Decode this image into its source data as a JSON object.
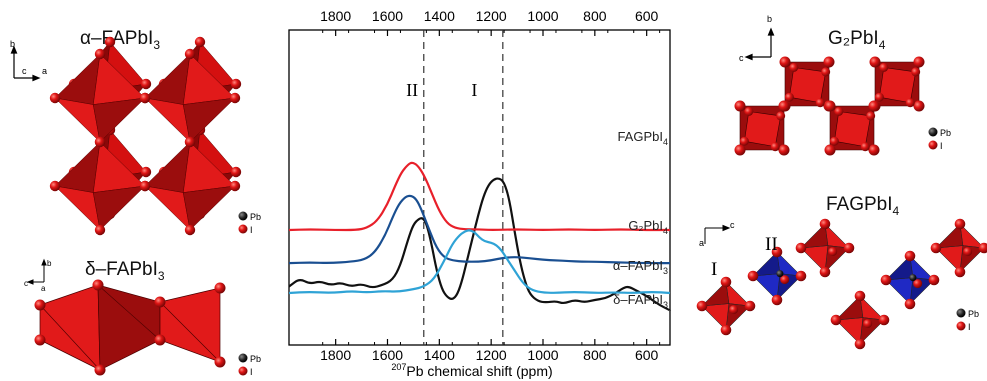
{
  "chart_data": {
    "type": "line",
    "xlabel_sup": "207",
    "xlabel_rest": "Pb chemical shift (ppm)",
    "x_reversed": true,
    "xlim": [
      1980,
      510
    ],
    "ticks": [
      1800,
      1600,
      1400,
      1200,
      1000,
      800,
      600
    ],
    "tick_labels": [
      "1800",
      "1600",
      "1400",
      "1200",
      "1000",
      "800",
      "600"
    ],
    "vlines": [
      1460,
      1155
    ],
    "peak_labels": [
      {
        "text": "II",
        "x": 1505
      },
      {
        "text": "I",
        "x": 1265
      }
    ],
    "series": [
      {
        "key": "fag",
        "name_main": "FAGPbI",
        "name_sub": "4",
        "color": "#111111",
        "baseline": 0.89,
        "amp": 0.8,
        "points": [
          [
            1980,
            0.18
          ],
          [
            1940,
            0.24
          ],
          [
            1900,
            0.2
          ],
          [
            1860,
            0.22
          ],
          [
            1820,
            0.19
          ],
          [
            1780,
            0.21
          ],
          [
            1740,
            0.18
          ],
          [
            1700,
            0.2
          ],
          [
            1660,
            0.17
          ],
          [
            1620,
            0.19
          ],
          [
            1580,
            0.23
          ],
          [
            1550,
            0.34
          ],
          [
            1520,
            0.54
          ],
          [
            1500,
            0.65
          ],
          [
            1480,
            0.69
          ],
          [
            1465,
            0.7
          ],
          [
            1450,
            0.66
          ],
          [
            1430,
            0.5
          ],
          [
            1410,
            0.3
          ],
          [
            1390,
            0.16
          ],
          [
            1370,
            0.1
          ],
          [
            1350,
            0.08
          ],
          [
            1330,
            0.12
          ],
          [
            1310,
            0.24
          ],
          [
            1290,
            0.4
          ],
          [
            1270,
            0.56
          ],
          [
            1250,
            0.72
          ],
          [
            1230,
            0.86
          ],
          [
            1210,
            0.95
          ],
          [
            1190,
            0.99
          ],
          [
            1170,
            1.0
          ],
          [
            1150,
            0.97
          ],
          [
            1130,
            0.84
          ],
          [
            1110,
            0.6
          ],
          [
            1090,
            0.38
          ],
          [
            1070,
            0.22
          ],
          [
            1050,
            0.12
          ],
          [
            1020,
            0.07
          ],
          [
            990,
            0.06
          ],
          [
            950,
            0.07
          ],
          [
            920,
            0.05
          ],
          [
            880,
            0.08
          ],
          [
            840,
            0.06
          ],
          [
            800,
            0.08
          ],
          [
            760,
            0.09
          ],
          [
            720,
            0.13
          ],
          [
            690,
            0.17
          ],
          [
            670,
            0.18
          ],
          [
            640,
            0.15
          ],
          [
            610,
            0.12
          ],
          [
            580,
            0.08
          ],
          [
            550,
            0.04
          ],
          [
            510,
            0.0
          ]
        ]
      },
      {
        "key": "g2",
        "name_main": "G₂PbI",
        "name_sub": "4",
        "color": "#e8202a",
        "baseline": 0.635,
        "amp": 0.66,
        "points": [
          [
            1980,
            0.0
          ],
          [
            1900,
            0.01
          ],
          [
            1800,
            0.0
          ],
          [
            1720,
            0.0
          ],
          [
            1680,
            0.03
          ],
          [
            1640,
            0.13
          ],
          [
            1600,
            0.38
          ],
          [
            1570,
            0.66
          ],
          [
            1545,
            0.86
          ],
          [
            1520,
            0.97
          ],
          [
            1505,
            1.0
          ],
          [
            1485,
            0.96
          ],
          [
            1460,
            0.82
          ],
          [
            1430,
            0.55
          ],
          [
            1400,
            0.28
          ],
          [
            1370,
            0.1
          ],
          [
            1340,
            0.03
          ],
          [
            1300,
            0.01
          ],
          [
            1250,
            0.01
          ],
          [
            1200,
            0.0
          ],
          [
            1100,
            0.01
          ],
          [
            1000,
            0.0
          ],
          [
            900,
            0.01
          ],
          [
            800,
            0.0
          ],
          [
            700,
            0.01
          ],
          [
            600,
            0.0
          ],
          [
            510,
            0.0
          ]
        ]
      },
      {
        "key": "alpha",
        "name_main": "α–FAPbI",
        "name_sub": "3",
        "color": "#1a4f91",
        "baseline": 0.74,
        "amp": 0.65,
        "points": [
          [
            1980,
            0.0
          ],
          [
            1900,
            0.01
          ],
          [
            1820,
            0.0
          ],
          [
            1740,
            0.02
          ],
          [
            1690,
            0.05
          ],
          [
            1650,
            0.15
          ],
          [
            1610,
            0.4
          ],
          [
            1580,
            0.68
          ],
          [
            1555,
            0.88
          ],
          [
            1530,
            0.98
          ],
          [
            1510,
            1.0
          ],
          [
            1490,
            0.95
          ],
          [
            1470,
            0.8
          ],
          [
            1440,
            0.5
          ],
          [
            1410,
            0.22
          ],
          [
            1380,
            0.08
          ],
          [
            1350,
            0.04
          ],
          [
            1300,
            0.02
          ],
          [
            1250,
            0.02
          ],
          [
            1200,
            0.04
          ],
          [
            1150,
            0.08
          ],
          [
            1100,
            0.09
          ],
          [
            1050,
            0.07
          ],
          [
            1000,
            0.05
          ],
          [
            950,
            0.04
          ],
          [
            900,
            0.03
          ],
          [
            850,
            0.02
          ],
          [
            800,
            0.02
          ],
          [
            700,
            0.01
          ],
          [
            600,
            0.0
          ],
          [
            510,
            0.0
          ]
        ]
      },
      {
        "key": "delta",
        "name_main": "δ–FAPbI",
        "name_sub": "3",
        "color": "#2fa3d6",
        "baseline": 0.835,
        "amp": 0.68,
        "points": [
          [
            1980,
            0.0
          ],
          [
            1900,
            0.02
          ],
          [
            1820,
            0.0
          ],
          [
            1740,
            0.03
          ],
          [
            1680,
            0.01
          ],
          [
            1620,
            0.03
          ],
          [
            1560,
            0.02
          ],
          [
            1500,
            0.06
          ],
          [
            1460,
            0.1
          ],
          [
            1420,
            0.22
          ],
          [
            1380,
            0.52
          ],
          [
            1350,
            0.78
          ],
          [
            1320,
            0.93
          ],
          [
            1300,
            0.98
          ],
          [
            1285,
            1.0
          ],
          [
            1265,
            0.97
          ],
          [
            1245,
            0.88
          ],
          [
            1225,
            0.82
          ],
          [
            1200,
            0.8
          ],
          [
            1180,
            0.76
          ],
          [
            1160,
            0.68
          ],
          [
            1140,
            0.55
          ],
          [
            1110,
            0.36
          ],
          [
            1080,
            0.17
          ],
          [
            1050,
            0.06
          ],
          [
            1010,
            0.01
          ],
          [
            950,
            0.0
          ],
          [
            880,
            0.02
          ],
          [
            800,
            0.0
          ],
          [
            720,
            0.01
          ],
          [
            650,
            0.0
          ],
          [
            580,
            0.02
          ],
          [
            510,
            0.0
          ]
        ]
      }
    ]
  },
  "structures": {
    "alpha": {
      "title": "α–FAPbI",
      "title_sub": "3",
      "axes": [
        "b",
        "c",
        "a"
      ]
    },
    "delta": {
      "title": "δ–FAPbI",
      "title_sub": "3",
      "axes": [
        "b",
        "c",
        "a"
      ]
    },
    "g2": {
      "title": "G₂PbI",
      "title_sub": "4",
      "axes": [
        "b",
        "c"
      ]
    },
    "fag": {
      "title": "FAGPbI",
      "title_sub": "4",
      "axes": [
        "c",
        "a"
      ],
      "labels": [
        "I",
        "II"
      ]
    }
  },
  "legend": {
    "pb": "Pb",
    "i": "I"
  },
  "colors": {
    "octahedron": "#e11a1a",
    "octahedron_dark": "#9b0d0d",
    "blue": "#1f29c4",
    "pb_atom": "#222222"
  }
}
